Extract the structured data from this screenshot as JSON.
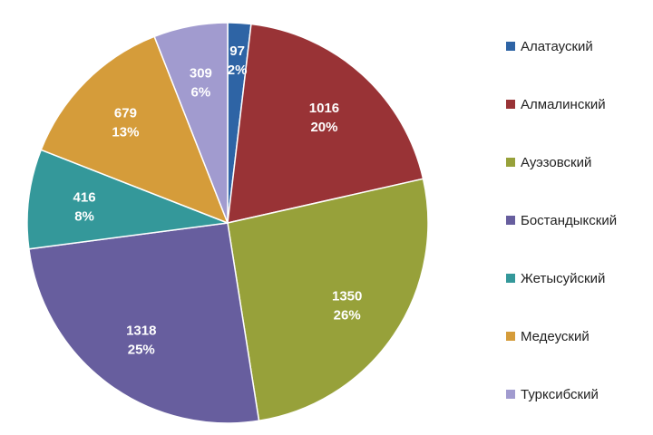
{
  "chart_data": {
    "type": "pie",
    "title": "",
    "legend_position": "right",
    "categories": [
      "Алатауский",
      "Алмалинский",
      "Ауэзовский",
      "Бостандыкский",
      "Жетысуйский",
      "Медеуский",
      "Турксибский"
    ],
    "values": [
      97,
      1016,
      1350,
      1318,
      416,
      679,
      309
    ],
    "value_labels": [
      "97",
      "1016",
      "1350",
      "1318",
      "416",
      "679",
      "309"
    ],
    "percent_labels": [
      "2%",
      "20%",
      "26%",
      "25%",
      "8%",
      "13%",
      "6%"
    ],
    "colors": [
      "#2E64A5",
      "#993336",
      "#97A13A",
      "#675E9E",
      "#34989A",
      "#D59C3A",
      "#A19BCF"
    ]
  }
}
